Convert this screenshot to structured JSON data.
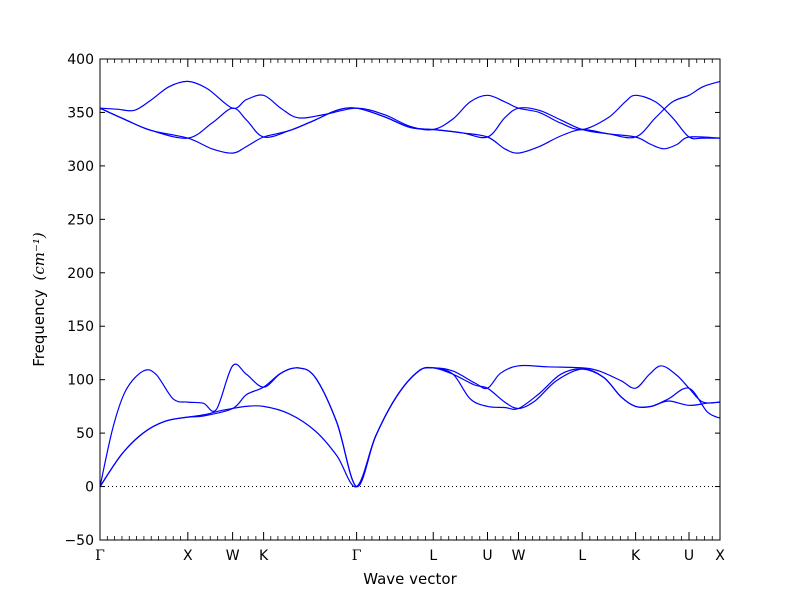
{
  "chart_data": {
    "type": "line",
    "xlabel": "Wave vector",
    "ylabel": "Frequency",
    "ylabel_unit": "(cm⁻¹)",
    "ylim": [
      -50,
      400
    ],
    "yticks": [
      -50,
      0,
      50,
      100,
      150,
      200,
      250,
      300,
      350,
      400
    ],
    "xlim": [
      0,
      7.2
    ],
    "high_symmetry_points": [
      {
        "label": "Γ",
        "x": 0.0
      },
      {
        "label": "X",
        "x": 1.02
      },
      {
        "label": "W",
        "x": 1.54
      },
      {
        "label": "K",
        "x": 1.9
      },
      {
        "label": "Γ",
        "x": 2.98
      },
      {
        "label": "L",
        "x": 3.87
      },
      {
        "label": "U",
        "x": 4.5
      },
      {
        "label": "W",
        "x": 4.86
      },
      {
        "label": "L",
        "x": 5.6
      },
      {
        "label": "K",
        "x": 6.22
      },
      {
        "label": "U",
        "x": 6.84
      },
      {
        "label": "X",
        "x": 7.2
      }
    ],
    "zero_line": 0,
    "line_color": "#0000ff",
    "series": [
      {
        "values": [
          [
            0.0,
            0
          ],
          [
            0.25,
            30
          ],
          [
            0.5,
            50
          ],
          [
            0.75,
            61
          ],
          [
            1.02,
            65
          ],
          [
            1.2,
            67
          ],
          [
            1.4,
            71
          ],
          [
            1.54,
            73
          ],
          [
            1.7,
            75
          ],
          [
            1.9,
            75
          ],
          [
            2.2,
            68
          ],
          [
            2.5,
            52
          ],
          [
            2.75,
            29
          ],
          [
            2.98,
            0
          ],
          [
            3.2,
            47
          ],
          [
            3.45,
            85
          ],
          [
            3.7,
            108
          ],
          [
            3.87,
            111
          ],
          [
            4.1,
            105
          ],
          [
            4.35,
            95
          ],
          [
            4.5,
            92
          ],
          [
            4.7,
            79
          ],
          [
            4.86,
            73
          ],
          [
            5.05,
            80
          ],
          [
            5.3,
            99
          ],
          [
            5.6,
            110
          ],
          [
            5.85,
            102
          ],
          [
            6.05,
            84
          ],
          [
            6.22,
            75
          ],
          [
            6.4,
            75
          ],
          [
            6.6,
            82
          ],
          [
            6.84,
            92
          ],
          [
            7.05,
            70
          ],
          [
            7.2,
            64
          ]
        ]
      },
      {
        "values": [
          [
            0.0,
            0
          ],
          [
            0.25,
            30
          ],
          [
            0.5,
            50
          ],
          [
            0.75,
            61
          ],
          [
            1.02,
            65
          ],
          [
            1.2,
            66
          ],
          [
            1.54,
            73
          ],
          [
            1.7,
            86
          ],
          [
            1.9,
            93
          ],
          [
            2.1,
            106
          ],
          [
            2.3,
            111
          ],
          [
            2.5,
            102
          ],
          [
            2.75,
            60
          ],
          [
            2.98,
            0
          ],
          [
            3.2,
            47
          ],
          [
            3.45,
            85
          ],
          [
            3.7,
            108
          ],
          [
            3.87,
            111
          ],
          [
            4.1,
            108
          ],
          [
            4.35,
            97
          ],
          [
            4.5,
            92
          ],
          [
            4.65,
            106
          ],
          [
            4.86,
            113
          ],
          [
            5.2,
            112
          ],
          [
            5.6,
            111
          ],
          [
            5.8,
            108
          ],
          [
            6.05,
            99
          ],
          [
            6.22,
            92
          ],
          [
            6.38,
            105
          ],
          [
            6.52,
            113
          ],
          [
            6.7,
            104
          ],
          [
            6.84,
            92
          ],
          [
            7.0,
            79
          ],
          [
            7.2,
            79
          ]
        ]
      },
      {
        "values": [
          [
            0.0,
            0
          ],
          [
            0.15,
            55
          ],
          [
            0.3,
            90
          ],
          [
            0.5,
            108
          ],
          [
            0.65,
            105
          ],
          [
            0.85,
            82
          ],
          [
            1.02,
            79
          ],
          [
            1.2,
            78
          ],
          [
            1.35,
            72
          ],
          [
            1.54,
            113
          ],
          [
            1.7,
            105
          ],
          [
            1.9,
            93
          ],
          [
            2.1,
            106
          ],
          [
            2.3,
            111
          ],
          [
            2.5,
            102
          ],
          [
            2.75,
            60
          ],
          [
            2.98,
            0
          ],
          [
            3.2,
            47
          ],
          [
            3.45,
            85
          ],
          [
            3.7,
            108
          ],
          [
            3.87,
            111
          ],
          [
            4.1,
            105
          ],
          [
            4.3,
            82
          ],
          [
            4.5,
            75
          ],
          [
            4.7,
            74
          ],
          [
            4.86,
            73
          ],
          [
            5.1,
            87
          ],
          [
            5.35,
            105
          ],
          [
            5.6,
            110
          ],
          [
            5.85,
            102
          ],
          [
            6.05,
            84
          ],
          [
            6.22,
            75
          ],
          [
            6.4,
            75
          ],
          [
            6.6,
            80
          ],
          [
            6.84,
            76
          ],
          [
            7.05,
            78
          ],
          [
            7.2,
            79
          ]
        ]
      },
      {
        "values": [
          [
            0.0,
            354
          ],
          [
            0.3,
            343
          ],
          [
            0.6,
            333
          ],
          [
            1.02,
            326
          ],
          [
            1.3,
            316
          ],
          [
            1.54,
            312
          ],
          [
            1.7,
            318
          ],
          [
            1.9,
            327
          ],
          [
            2.2,
            333
          ],
          [
            2.5,
            343
          ],
          [
            2.75,
            352
          ],
          [
            2.98,
            354
          ],
          [
            3.3,
            346
          ],
          [
            3.6,
            336
          ],
          [
            3.87,
            334
          ],
          [
            4.2,
            331
          ],
          [
            4.5,
            327
          ],
          [
            4.7,
            316
          ],
          [
            4.86,
            312
          ],
          [
            5.1,
            318
          ],
          [
            5.35,
            328
          ],
          [
            5.6,
            334
          ],
          [
            5.9,
            330
          ],
          [
            6.22,
            327
          ],
          [
            6.4,
            320
          ],
          [
            6.55,
            316
          ],
          [
            6.7,
            320
          ],
          [
            6.84,
            327
          ],
          [
            7.2,
            326
          ]
        ]
      },
      {
        "values": [
          [
            0.0,
            354
          ],
          [
            0.3,
            343
          ],
          [
            0.6,
            333
          ],
          [
            1.02,
            326
          ],
          [
            1.3,
            340
          ],
          [
            1.54,
            354
          ],
          [
            1.7,
            343
          ],
          [
            1.9,
            327
          ],
          [
            2.2,
            333
          ],
          [
            2.5,
            343
          ],
          [
            2.75,
            352
          ],
          [
            2.98,
            354
          ],
          [
            3.3,
            346
          ],
          [
            3.6,
            336
          ],
          [
            3.87,
            334
          ],
          [
            4.2,
            331
          ],
          [
            4.5,
            327
          ],
          [
            4.7,
            345
          ],
          [
            4.86,
            354
          ],
          [
            5.1,
            352
          ],
          [
            5.35,
            343
          ],
          [
            5.6,
            334
          ],
          [
            5.9,
            330
          ],
          [
            6.22,
            327
          ],
          [
            6.45,
            345
          ],
          [
            6.65,
            360
          ],
          [
            6.84,
            366
          ],
          [
            7.0,
            374
          ],
          [
            7.2,
            379
          ]
        ]
      },
      {
        "values": [
          [
            0.0,
            354
          ],
          [
            0.2,
            353
          ],
          [
            0.4,
            352
          ],
          [
            0.6,
            362
          ],
          [
            0.8,
            374
          ],
          [
            1.02,
            379
          ],
          [
            1.25,
            372
          ],
          [
            1.54,
            354
          ],
          [
            1.7,
            362
          ],
          [
            1.9,
            366
          ],
          [
            2.1,
            354
          ],
          [
            2.3,
            345
          ],
          [
            2.6,
            348
          ],
          [
            2.98,
            354
          ],
          [
            3.3,
            348
          ],
          [
            3.6,
            337
          ],
          [
            3.87,
            334
          ],
          [
            4.1,
            344
          ],
          [
            4.3,
            360
          ],
          [
            4.5,
            366
          ],
          [
            4.7,
            360
          ],
          [
            4.86,
            354
          ],
          [
            5.1,
            350
          ],
          [
            5.35,
            340
          ],
          [
            5.6,
            334
          ],
          [
            5.9,
            345
          ],
          [
            6.1,
            360
          ],
          [
            6.22,
            366
          ],
          [
            6.45,
            360
          ],
          [
            6.65,
            345
          ],
          [
            6.84,
            327
          ],
          [
            7.0,
            326
          ],
          [
            7.2,
            326
          ]
        ]
      }
    ]
  }
}
